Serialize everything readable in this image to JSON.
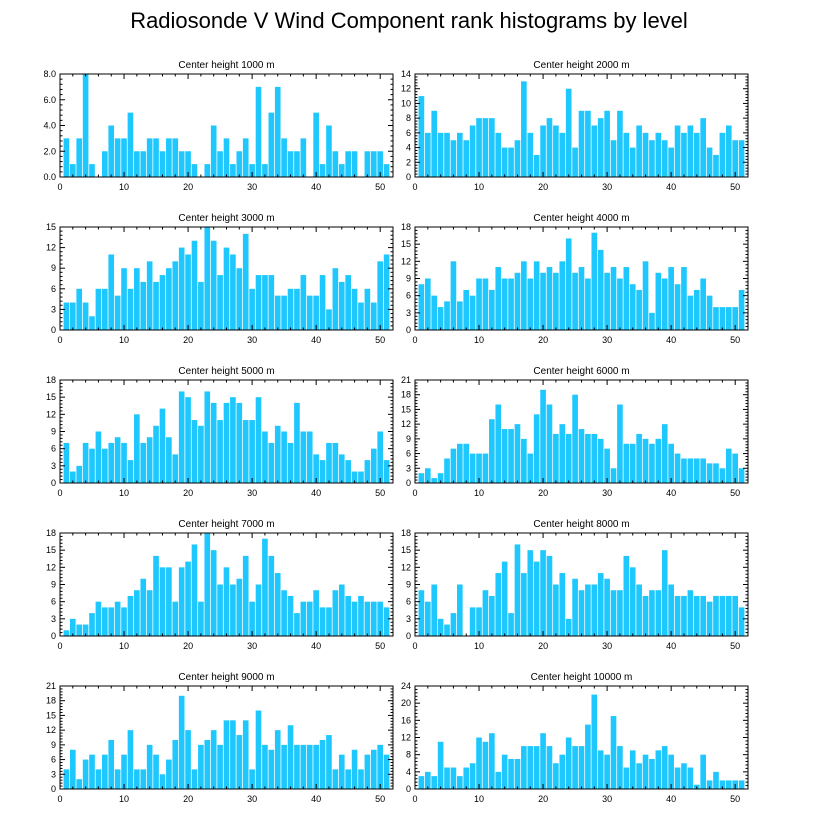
{
  "title": "Radiosonde V Wind Component rank histograms by level",
  "colors": {
    "bar": "#1ec8ff",
    "axis": "#000000",
    "background": "#ffffff"
  },
  "chart_data": [
    {
      "type": "bar",
      "title": "Center height 1000 m",
      "xlim": [
        0,
        52
      ],
      "ylim": [
        0,
        8
      ],
      "xticks": [
        0,
        10,
        20,
        30,
        40,
        50
      ],
      "xticklabels": [
        "0",
        "10",
        "20",
        "30",
        "40",
        "50"
      ],
      "yticks": [
        0,
        2,
        4,
        6,
        8
      ],
      "yticklabels": [
        "0.0",
        "2.0",
        "4.0",
        "6.0",
        "8.0"
      ],
      "x": [
        1,
        2,
        3,
        4,
        5,
        6,
        7,
        8,
        9,
        10,
        11,
        12,
        13,
        14,
        15,
        16,
        17,
        18,
        19,
        20,
        21,
        22,
        23,
        24,
        25,
        26,
        27,
        28,
        29,
        30,
        31,
        32,
        33,
        34,
        35,
        36,
        37,
        38,
        39,
        40,
        41,
        42,
        43,
        44,
        45,
        46,
        47,
        48,
        49,
        50,
        51
      ],
      "values": [
        3,
        1,
        3,
        8,
        1,
        0,
        2,
        4,
        3,
        3,
        5,
        2,
        2,
        3,
        3,
        2,
        3,
        3,
        2,
        2,
        1,
        0,
        1,
        4,
        2,
        3,
        1,
        2,
        3,
        1,
        7,
        1,
        5,
        7,
        3,
        2,
        2,
        3,
        0,
        5,
        1,
        4,
        2,
        1,
        2,
        2,
        0,
        2,
        2,
        2,
        1
      ]
    },
    {
      "type": "bar",
      "title": "Center height 2000 m",
      "xlim": [
        0,
        52
      ],
      "ylim": [
        0,
        14
      ],
      "xticks": [
        0,
        10,
        20,
        30,
        40,
        50
      ],
      "xticklabels": [
        "0",
        "10",
        "20",
        "30",
        "40",
        "50"
      ],
      "yticks": [
        0,
        2,
        4,
        6,
        8,
        10,
        12,
        14
      ],
      "yticklabels": [
        "0",
        "2",
        "4",
        "6",
        "8",
        "10",
        "12",
        "14"
      ],
      "x": [
        1,
        2,
        3,
        4,
        5,
        6,
        7,
        8,
        9,
        10,
        11,
        12,
        13,
        14,
        15,
        16,
        17,
        18,
        19,
        20,
        21,
        22,
        23,
        24,
        25,
        26,
        27,
        28,
        29,
        30,
        31,
        32,
        33,
        34,
        35,
        36,
        37,
        38,
        39,
        40,
        41,
        42,
        43,
        44,
        45,
        46,
        47,
        48,
        49,
        50,
        51
      ],
      "values": [
        11,
        6,
        9,
        6,
        6,
        5,
        6,
        5,
        7,
        8,
        8,
        8,
        6,
        4,
        4,
        5,
        13,
        6,
        3,
        7,
        8,
        7,
        6,
        12,
        4,
        9,
        9,
        7,
        8,
        9,
        5,
        9,
        6,
        4,
        7,
        6,
        5,
        6,
        5,
        4,
        7,
        6,
        7,
        6,
        8,
        4,
        3,
        6,
        7,
        5,
        5
      ]
    },
    {
      "type": "bar",
      "title": "Center height 3000 m",
      "xlim": [
        0,
        52
      ],
      "ylim": [
        0,
        15
      ],
      "xticks": [
        0,
        10,
        20,
        30,
        40,
        50
      ],
      "xticklabels": [
        "0",
        "10",
        "20",
        "30",
        "40",
        "50"
      ],
      "yticks": [
        0,
        3,
        6,
        9,
        12,
        15
      ],
      "yticklabels": [
        "0",
        "3",
        "6",
        "9",
        "12",
        "15"
      ],
      "x": [
        1,
        2,
        3,
        4,
        5,
        6,
        7,
        8,
        9,
        10,
        11,
        12,
        13,
        14,
        15,
        16,
        17,
        18,
        19,
        20,
        21,
        22,
        23,
        24,
        25,
        26,
        27,
        28,
        29,
        30,
        31,
        32,
        33,
        34,
        35,
        36,
        37,
        38,
        39,
        40,
        41,
        42,
        43,
        44,
        45,
        46,
        47,
        48,
        49,
        50,
        51
      ],
      "values": [
        4,
        4,
        6,
        4,
        2,
        6,
        6,
        11,
        5,
        9,
        6,
        9,
        7,
        10,
        7,
        8,
        9,
        10,
        12,
        11,
        13,
        7,
        15,
        13,
        8,
        12,
        11,
        9,
        14,
        6,
        8,
        8,
        8,
        5,
        5,
        6,
        6,
        8,
        5,
        5,
        8,
        3,
        9,
        7,
        8,
        6,
        4,
        6,
        4,
        10,
        11
      ]
    },
    {
      "type": "bar",
      "title": "Center height 4000 m",
      "xlim": [
        0,
        52
      ],
      "ylim": [
        0,
        18
      ],
      "xticks": [
        0,
        10,
        20,
        30,
        40,
        50
      ],
      "xticklabels": [
        "0",
        "10",
        "20",
        "30",
        "40",
        "50"
      ],
      "yticks": [
        0,
        3,
        6,
        9,
        12,
        15,
        18
      ],
      "yticklabels": [
        "0",
        "3",
        "6",
        "9",
        "12",
        "15",
        "18"
      ],
      "x": [
        1,
        2,
        3,
        4,
        5,
        6,
        7,
        8,
        9,
        10,
        11,
        12,
        13,
        14,
        15,
        16,
        17,
        18,
        19,
        20,
        21,
        22,
        23,
        24,
        25,
        26,
        27,
        28,
        29,
        30,
        31,
        32,
        33,
        34,
        35,
        36,
        37,
        38,
        39,
        40,
        41,
        42,
        43,
        44,
        45,
        46,
        47,
        48,
        49,
        50,
        51
      ],
      "values": [
        8,
        9,
        6,
        4,
        5,
        12,
        5,
        7,
        6,
        9,
        9,
        7,
        11,
        9,
        9,
        10,
        12,
        9,
        12,
        10,
        11,
        10,
        12,
        16,
        10,
        11,
        9,
        17,
        14,
        10,
        11,
        9,
        11,
        8,
        7,
        12,
        3,
        10,
        9,
        11,
        8,
        11,
        6,
        7,
        9,
        6,
        4,
        4,
        4,
        4,
        7
      ]
    },
    {
      "type": "bar",
      "title": "Center height 5000 m",
      "xlim": [
        0,
        52
      ],
      "ylim": [
        0,
        18
      ],
      "xticks": [
        0,
        10,
        20,
        30,
        40,
        50
      ],
      "xticklabels": [
        "0",
        "10",
        "20",
        "30",
        "40",
        "50"
      ],
      "yticks": [
        0,
        3,
        6,
        9,
        12,
        15,
        18
      ],
      "yticklabels": [
        "0",
        "3",
        "6",
        "9",
        "12",
        "15",
        "18"
      ],
      "x": [
        1,
        2,
        3,
        4,
        5,
        6,
        7,
        8,
        9,
        10,
        11,
        12,
        13,
        14,
        15,
        16,
        17,
        18,
        19,
        20,
        21,
        22,
        23,
        24,
        25,
        26,
        27,
        28,
        29,
        30,
        31,
        32,
        33,
        34,
        35,
        36,
        37,
        38,
        39,
        40,
        41,
        42,
        43,
        44,
        45,
        46,
        47,
        48,
        49,
        50,
        51
      ],
      "values": [
        7,
        2,
        3,
        7,
        6,
        9,
        6,
        7,
        8,
        7,
        4,
        12,
        7,
        8,
        10,
        13,
        8,
        5,
        16,
        15,
        11,
        10,
        16,
        14,
        11,
        14,
        15,
        14,
        11,
        11,
        15,
        9,
        7,
        10,
        9,
        7,
        14,
        9,
        9,
        5,
        4,
        7,
        7,
        5,
        4,
        2,
        2,
        4,
        6,
        9,
        4
      ]
    },
    {
      "type": "bar",
      "title": "Center height 6000 m",
      "xlim": [
        0,
        52
      ],
      "ylim": [
        0,
        21
      ],
      "xticks": [
        0,
        10,
        20,
        30,
        40,
        50
      ],
      "xticklabels": [
        "0",
        "10",
        "20",
        "30",
        "40",
        "50"
      ],
      "yticks": [
        0,
        3,
        6,
        9,
        12,
        15,
        18,
        21
      ],
      "yticklabels": [
        "0",
        "3",
        "6",
        "9",
        "12",
        "15",
        "18",
        "21"
      ],
      "x": [
        1,
        2,
        3,
        4,
        5,
        6,
        7,
        8,
        9,
        10,
        11,
        12,
        13,
        14,
        15,
        16,
        17,
        18,
        19,
        20,
        21,
        22,
        23,
        24,
        25,
        26,
        27,
        28,
        29,
        30,
        31,
        32,
        33,
        34,
        35,
        36,
        37,
        38,
        39,
        40,
        41,
        42,
        43,
        44,
        45,
        46,
        47,
        48,
        49,
        50,
        51
      ],
      "values": [
        2,
        3,
        1,
        2,
        5,
        7,
        8,
        8,
        6,
        6,
        6,
        13,
        16,
        11,
        11,
        12,
        9,
        6,
        14,
        19,
        16,
        10,
        12,
        10,
        18,
        11,
        10,
        10,
        9,
        7,
        3,
        16,
        8,
        8,
        10,
        9,
        8,
        9,
        12,
        8,
        6,
        5,
        5,
        5,
        5,
        4,
        4,
        3,
        7,
        6,
        3
      ]
    },
    {
      "type": "bar",
      "title": "Center height 7000 m",
      "xlim": [
        0,
        52
      ],
      "ylim": [
        0,
        18
      ],
      "xticks": [
        0,
        10,
        20,
        30,
        40,
        50
      ],
      "xticklabels": [
        "0",
        "10",
        "20",
        "30",
        "40",
        "50"
      ],
      "yticks": [
        0,
        3,
        6,
        9,
        12,
        15,
        18
      ],
      "yticklabels": [
        "0",
        "3",
        "6",
        "9",
        "12",
        "15",
        "18"
      ],
      "x": [
        1,
        2,
        3,
        4,
        5,
        6,
        7,
        8,
        9,
        10,
        11,
        12,
        13,
        14,
        15,
        16,
        17,
        18,
        19,
        20,
        21,
        22,
        23,
        24,
        25,
        26,
        27,
        28,
        29,
        30,
        31,
        32,
        33,
        34,
        35,
        36,
        37,
        38,
        39,
        40,
        41,
        42,
        43,
        44,
        45,
        46,
        47,
        48,
        49,
        50,
        51
      ],
      "values": [
        1,
        3,
        2,
        2,
        4,
        6,
        5,
        5,
        6,
        5,
        7,
        8,
        10,
        8,
        14,
        12,
        12,
        6,
        12,
        13,
        16,
        6,
        18,
        15,
        9,
        12,
        9,
        10,
        14,
        6,
        9,
        17,
        14,
        11,
        8,
        7,
        4,
        6,
        6,
        8,
        5,
        5,
        8,
        9,
        7,
        6,
        7,
        6,
        6,
        6,
        5
      ]
    },
    {
      "type": "bar",
      "title": "Center height 8000 m",
      "xlim": [
        0,
        52
      ],
      "ylim": [
        0,
        18
      ],
      "xticks": [
        0,
        10,
        20,
        30,
        40,
        50
      ],
      "xticklabels": [
        "0",
        "10",
        "20",
        "30",
        "40",
        "50"
      ],
      "yticks": [
        0,
        3,
        6,
        9,
        12,
        15,
        18
      ],
      "yticklabels": [
        "0",
        "3",
        "6",
        "9",
        "12",
        "15",
        "18"
      ],
      "x": [
        1,
        2,
        3,
        4,
        5,
        6,
        7,
        8,
        9,
        10,
        11,
        12,
        13,
        14,
        15,
        16,
        17,
        18,
        19,
        20,
        21,
        22,
        23,
        24,
        25,
        26,
        27,
        28,
        29,
        30,
        31,
        32,
        33,
        34,
        35,
        36,
        37,
        38,
        39,
        40,
        41,
        42,
        43,
        44,
        45,
        46,
        47,
        48,
        49,
        50,
        51
      ],
      "values": [
        8,
        6,
        9,
        3,
        2,
        4,
        9,
        0,
        5,
        5,
        8,
        7,
        11,
        13,
        4,
        16,
        11,
        15,
        13,
        15,
        14,
        9,
        11,
        3,
        10,
        8,
        9,
        9,
        11,
        10,
        8,
        8,
        14,
        12,
        9,
        7,
        8,
        8,
        15,
        9,
        7,
        7,
        8,
        7,
        7,
        6,
        7,
        7,
        7,
        7,
        5
      ]
    },
    {
      "type": "bar",
      "title": "Center height 9000 m",
      "xlim": [
        0,
        52
      ],
      "ylim": [
        0,
        21
      ],
      "xticks": [
        0,
        10,
        20,
        30,
        40,
        50
      ],
      "xticklabels": [
        "0",
        "10",
        "20",
        "30",
        "40",
        "50"
      ],
      "yticks": [
        0,
        3,
        6,
        9,
        12,
        15,
        18,
        21
      ],
      "yticklabels": [
        "0",
        "3",
        "6",
        "9",
        "12",
        "15",
        "18",
        "21"
      ],
      "x": [
        1,
        2,
        3,
        4,
        5,
        6,
        7,
        8,
        9,
        10,
        11,
        12,
        13,
        14,
        15,
        16,
        17,
        18,
        19,
        20,
        21,
        22,
        23,
        24,
        25,
        26,
        27,
        28,
        29,
        30,
        31,
        32,
        33,
        34,
        35,
        36,
        37,
        38,
        39,
        40,
        41,
        42,
        43,
        44,
        45,
        46,
        47,
        48,
        49,
        50,
        51
      ],
      "values": [
        4,
        8,
        2,
        6,
        7,
        4,
        7,
        10,
        4,
        7,
        12,
        4,
        4,
        9,
        7,
        3,
        6,
        10,
        19,
        12,
        4,
        9,
        10,
        12,
        9,
        14,
        14,
        11,
        14,
        4,
        16,
        9,
        8,
        12,
        9,
        13,
        9,
        9,
        9,
        9,
        10,
        11,
        4,
        7,
        4,
        8,
        4,
        7,
        8,
        9,
        7
      ]
    },
    {
      "type": "bar",
      "title": "Center height 10000 m",
      "xlim": [
        0,
        52
      ],
      "ylim": [
        0,
        24
      ],
      "xticks": [
        0,
        10,
        20,
        30,
        40,
        50
      ],
      "xticklabels": [
        "0",
        "10",
        "20",
        "30",
        "40",
        "50"
      ],
      "yticks": [
        0,
        4,
        8,
        12,
        16,
        20,
        24
      ],
      "yticklabels": [
        "0",
        "4",
        "8",
        "12",
        "16",
        "20",
        "24"
      ],
      "x": [
        1,
        2,
        3,
        4,
        5,
        6,
        7,
        8,
        9,
        10,
        11,
        12,
        13,
        14,
        15,
        16,
        17,
        18,
        19,
        20,
        21,
        22,
        23,
        24,
        25,
        26,
        27,
        28,
        29,
        30,
        31,
        32,
        33,
        34,
        35,
        36,
        37,
        38,
        39,
        40,
        41,
        42,
        43,
        44,
        45,
        46,
        47,
        48,
        49,
        50,
        51
      ],
      "values": [
        3,
        4,
        3,
        11,
        5,
        5,
        3,
        5,
        6,
        12,
        11,
        13,
        4,
        8,
        7,
        7,
        10,
        10,
        10,
        13,
        10,
        6,
        8,
        12,
        10,
        10,
        15,
        22,
        9,
        8,
        17,
        10,
        5,
        9,
        6,
        8,
        7,
        9,
        10,
        8,
        5,
        6,
        5,
        1,
        8,
        2,
        4,
        2,
        2,
        2,
        2
      ]
    }
  ]
}
